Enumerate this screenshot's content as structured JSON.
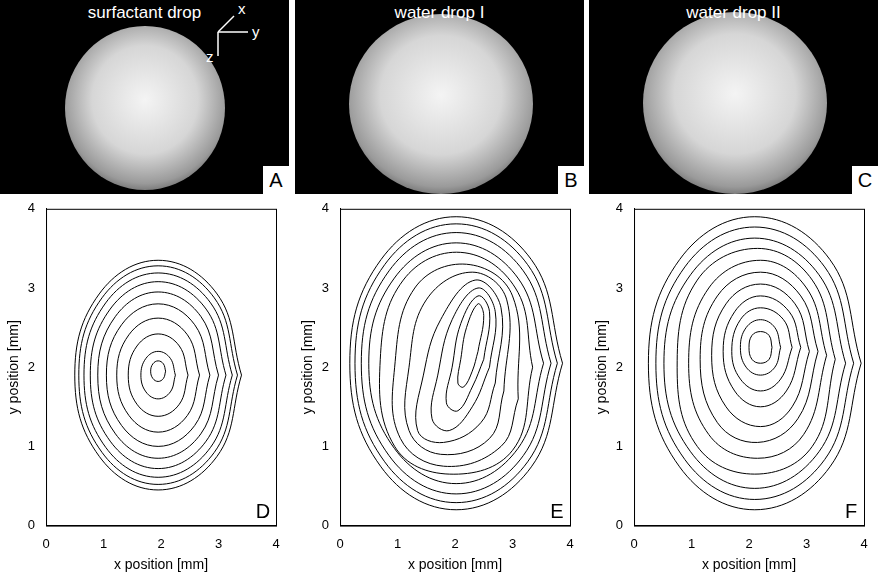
{
  "renderings": [
    {
      "title": "surfactant drop",
      "label": "A"
    },
    {
      "title": "water drop I",
      "label": "B"
    },
    {
      "title": "water drop II",
      "label": "C"
    }
  ],
  "axis_triad": [
    "x",
    "y",
    "z"
  ],
  "chart_data": [
    {
      "type": "contour",
      "label": "D",
      "x_label": "x position [mm]",
      "y_label": "y position [mm]",
      "xlim": [
        0,
        4
      ],
      "ylim": [
        0,
        4
      ],
      "xticks": [
        0,
        1,
        2,
        3,
        4
      ],
      "yticks": [
        0,
        1,
        2,
        3,
        4
      ],
      "color": "#000000",
      "contours": [
        {
          "x": [
            3.4,
            2.975,
            1.95,
            0.925,
            0.5,
            0.925,
            1.95,
            2.975
          ],
          "y": [
            1.9,
            2.925,
            3.35,
            2.925,
            1.9,
            0.875,
            0.45,
            0.875
          ]
        },
        {
          "x": [
            3.33,
            2.926,
            1.95,
            0.974,
            0.57,
            0.974,
            1.95,
            2.926
          ],
          "y": [
            1.9,
            2.876,
            3.28,
            2.876,
            1.9,
            0.924,
            0.52,
            0.924
          ]
        },
        {
          "x": [
            3.24,
            2.862,
            1.95,
            1.038,
            0.66,
            1.038,
            1.95,
            2.862
          ],
          "y": [
            1.9,
            2.812,
            3.19,
            2.812,
            1.9,
            0.988,
            0.61,
            0.988
          ]
        },
        {
          "x": [
            3.13,
            2.784,
            1.95,
            1.116,
            0.77,
            1.116,
            1.95,
            2.784
          ],
          "y": [
            1.9,
            2.734,
            3.08,
            2.734,
            1.9,
            1.066,
            0.72,
            1.066
          ]
        },
        {
          "x": [
            3.0,
            2.692,
            1.95,
            1.208,
            0.9,
            1.208,
            1.95,
            2.692
          ],
          "y": [
            1.9,
            2.642,
            2.95,
            2.642,
            1.9,
            1.158,
            0.85,
            1.158
          ]
        },
        {
          "x": [
            2.85,
            2.586,
            1.95,
            1.314,
            1.05,
            1.314,
            1.95,
            2.586
          ],
          "y": [
            1.9,
            2.536,
            2.8,
            2.536,
            1.9,
            1.264,
            1.0,
            1.264
          ]
        },
        {
          "x": [
            2.67,
            2.459,
            1.95,
            1.441,
            1.23,
            1.441,
            1.95,
            2.459
          ],
          "y": [
            1.9,
            2.409,
            2.62,
            2.409,
            1.9,
            1.391,
            1.18,
            1.391
          ]
        },
        {
          "x": [
            2.47,
            2.318,
            1.95,
            1.582,
            1.43,
            1.582,
            1.95,
            2.318
          ],
          "y": [
            1.9,
            2.268,
            2.42,
            2.268,
            1.9,
            1.532,
            1.38,
            1.532
          ]
        },
        {
          "x": [
            2.25,
            2.162,
            1.95,
            1.738,
            1.65,
            1.738,
            1.95,
            2.162
          ],
          "y": [
            1.9,
            2.112,
            2.2,
            2.112,
            1.9,
            1.688,
            1.6,
            1.688
          ]
        },
        {
          "x": [
            2.08,
            2.042,
            1.95,
            1.858,
            1.82,
            1.858,
            1.95,
            2.042
          ],
          "y": [
            1.95,
            2.042,
            2.08,
            2.042,
            1.95,
            1.858,
            1.82,
            1.858
          ]
        }
      ]
    },
    {
      "type": "contour",
      "label": "E",
      "x_label": "x position [mm]",
      "y_label": "y position [mm]",
      "xlim": [
        0,
        4
      ],
      "ylim": [
        0,
        4
      ],
      "xticks": [
        0,
        1,
        2,
        3,
        4
      ],
      "yticks": [
        0,
        1,
        2,
        3,
        4
      ],
      "color": "#000000",
      "contours": [
        {
          "x": [
            3.87,
            3.328,
            2.02,
            0.712,
            0.17,
            0.712,
            2.02,
            3.328
          ],
          "y": [
            2.05,
            3.358,
            3.9,
            3.358,
            2.05,
            0.742,
            0.2,
            0.742
          ]
        },
        {
          "x": [
            3.78,
            3.264,
            2.02,
            0.776,
            0.26,
            0.776,
            2.02,
            3.264
          ],
          "y": [
            2.05,
            3.294,
            3.81,
            3.294,
            2.05,
            0.806,
            0.29,
            0.806
          ]
        },
        {
          "x": [
            3.67,
            3.187,
            2.02,
            0.853,
            0.37,
            0.853,
            2.02,
            3.187
          ],
          "y": [
            2.05,
            3.217,
            3.7,
            3.217,
            2.05,
            0.883,
            0.4,
            0.883
          ]
        },
        {
          "x": [
            3.54,
            3.095,
            2.02,
            0.945,
            0.5,
            0.945,
            2.02,
            3.095
          ],
          "y": [
            2.05,
            3.125,
            3.57,
            3.125,
            2.05,
            0.975,
            0.53,
            0.975
          ]
        },
        {
          "x": [
            3.35,
            3.05,
            2.1,
            1.1,
            0.7,
            0.95,
            1.9,
            3.0
          ],
          "y": [
            2.0,
            3.0,
            3.45,
            3.1,
            2.1,
            1.0,
            0.65,
            0.95
          ]
        },
        {
          "x": [
            3.1,
            3.0,
            2.2,
            1.3,
            0.95,
            1.05,
            1.8,
            2.8
          ],
          "y": [
            1.6,
            2.9,
            3.3,
            3.0,
            2.0,
            1.1,
            0.75,
            1.0
          ]
        },
        {
          "x": [
            2.85,
            2.9,
            2.3,
            1.5,
            1.2,
            1.2,
            1.75,
            2.6
          ],
          "y": [
            1.7,
            2.85,
            3.2,
            2.85,
            2.0,
            1.2,
            0.9,
            1.1
          ]
        },
        {
          "x": [
            2.7,
            2.8,
            2.35,
            1.75,
            1.45,
            1.35,
            1.8,
            2.45
          ],
          "y": [
            1.8,
            2.75,
            3.1,
            2.6,
            1.9,
            1.2,
            1.05,
            1.3
          ]
        },
        {
          "x": [
            2.6,
            2.7,
            2.4,
            1.95,
            1.7,
            1.6,
            1.9,
            2.3
          ],
          "y": [
            2.0,
            2.7,
            3.0,
            2.6,
            1.9,
            1.35,
            1.2,
            1.5
          ]
        },
        {
          "x": [
            2.5,
            2.6,
            2.4,
            2.1,
            1.95,
            1.85,
            2.05,
            2.3
          ],
          "y": [
            2.1,
            2.7,
            2.9,
            2.55,
            2.0,
            1.55,
            1.45,
            1.75
          ]
        },
        {
          "x": [
            2.4,
            2.5,
            2.4,
            2.2,
            2.1,
            2.05,
            2.15,
            2.3
          ],
          "y": [
            2.2,
            2.65,
            2.8,
            2.5,
            2.1,
            1.8,
            1.75,
            1.95
          ]
        }
      ]
    },
    {
      "type": "contour",
      "label": "F",
      "x_label": "x position [mm]",
      "y_label": "y position [mm]",
      "xlim": [
        0,
        4
      ],
      "ylim": [
        0,
        4
      ],
      "xticks": [
        0,
        1,
        2,
        3,
        4
      ],
      "yticks": [
        0,
        1,
        2,
        3,
        4
      ],
      "color": "#000000",
      "contours": [
        {
          "x": [
            3.95,
            3.408,
            2.1,
            0.792,
            0.25,
            0.792,
            2.1,
            3.408
          ],
          "y": [
            2.05,
            3.358,
            3.9,
            3.358,
            2.05,
            0.742,
            0.2,
            0.742
          ]
        },
        {
          "x": [
            3.82,
            3.316,
            2.1,
            0.884,
            0.38,
            0.884,
            2.1,
            3.316
          ],
          "y": [
            2.05,
            3.266,
            3.77,
            3.266,
            2.05,
            0.834,
            0.33,
            0.834
          ]
        },
        {
          "x": [
            3.68,
            3.217,
            2.1,
            0.983,
            0.52,
            0.983,
            2.1,
            3.217
          ],
          "y": [
            2.05,
            3.167,
            3.63,
            3.167,
            2.05,
            0.933,
            0.47,
            0.933
          ]
        },
        {
          "x": [
            3.5,
            3.1,
            2.15,
            1.1,
            0.75,
            1.1,
            2.1,
            3.1
          ],
          "y": [
            2.1,
            3.1,
            3.5,
            3.1,
            2.0,
            1.0,
            0.65,
            1.0
          ]
        },
        {
          "x": [
            3.35,
            3.0,
            2.2,
            1.3,
            0.95,
            1.3,
            2.15,
            2.95
          ],
          "y": [
            2.15,
            3.0,
            3.35,
            3.0,
            2.05,
            1.15,
            0.85,
            1.15
          ]
        },
        {
          "x": [
            3.2,
            2.9,
            2.2,
            1.45,
            1.15,
            1.45,
            2.15,
            2.85
          ],
          "y": [
            2.2,
            2.9,
            3.2,
            2.9,
            2.1,
            1.3,
            1.05,
            1.35
          ]
        },
        {
          "x": [
            3.05,
            2.8,
            2.2,
            1.6,
            1.35,
            1.6,
            2.2,
            2.75
          ],
          "y": [
            2.2,
            2.8,
            3.05,
            2.8,
            2.15,
            1.5,
            1.25,
            1.5
          ]
        },
        {
          "x": [
            2.9,
            2.7,
            2.2,
            1.75,
            1.55,
            1.75,
            2.2,
            2.65
          ],
          "y": [
            2.25,
            2.7,
            2.9,
            2.7,
            2.2,
            1.7,
            1.5,
            1.7
          ]
        },
        {
          "x": [
            2.75,
            2.6,
            2.2,
            1.85,
            1.7,
            1.85,
            2.2,
            2.55
          ],
          "y": [
            2.25,
            2.6,
            2.75,
            2.6,
            2.2,
            1.85,
            1.7,
            1.85
          ]
        },
        {
          "x": [
            2.55,
            2.45,
            2.2,
            1.95,
            1.85,
            1.95,
            2.2,
            2.45
          ],
          "y": [
            2.25,
            2.5,
            2.6,
            2.5,
            2.25,
            2.0,
            1.9,
            2.0
          ]
        },
        {
          "x": [
            2.4,
            2.35,
            2.2,
            2.05,
            2.0,
            2.05,
            2.2,
            2.35
          ],
          "y": [
            2.25,
            2.4,
            2.45,
            2.4,
            2.25,
            2.1,
            2.05,
            2.1
          ]
        }
      ]
    }
  ]
}
